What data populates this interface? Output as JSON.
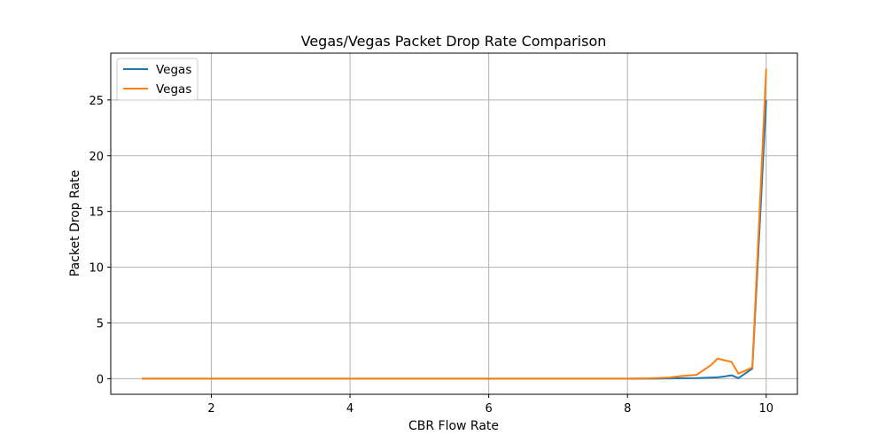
{
  "chart_data": {
    "type": "line",
    "title": "Vegas/Vegas Packet Drop Rate Comparison",
    "xlabel": "CBR Flow Rate",
    "ylabel": "Packet Drop Rate",
    "xlim": [
      0.55,
      10.45
    ],
    "ylim": [
      -1.4,
      29.2
    ],
    "xticks": [
      2,
      4,
      6,
      8,
      10
    ],
    "yticks": [
      0,
      5,
      10,
      15,
      20,
      25
    ],
    "grid": true,
    "legend_position": "top-left",
    "series": [
      {
        "name": "Vegas",
        "color": "#1f77b4",
        "x": [
          1.0,
          2.0,
          3.0,
          4.0,
          5.0,
          6.0,
          7.0,
          8.0,
          8.2,
          8.4,
          8.6,
          8.8,
          9.0,
          9.2,
          9.3,
          9.4,
          9.5,
          9.6,
          9.8,
          10.0
        ],
        "y": [
          0,
          0,
          0,
          0,
          0,
          0,
          0,
          0,
          0,
          0,
          0.02,
          0.04,
          0.05,
          0.1,
          0.12,
          0.2,
          0.3,
          0.05,
          0.9,
          25.0
        ]
      },
      {
        "name": "Vegas",
        "color": "#ff7f0e",
        "x": [
          1.0,
          2.0,
          3.0,
          4.0,
          5.0,
          6.0,
          7.0,
          8.0,
          8.2,
          8.4,
          8.6,
          8.8,
          9.0,
          9.2,
          9.3,
          9.4,
          9.5,
          9.6,
          9.8,
          10.0
        ],
        "y": [
          0,
          0,
          0,
          0,
          0,
          0,
          0,
          0,
          0.02,
          0.05,
          0.1,
          0.25,
          0.35,
          1.2,
          1.8,
          1.65,
          1.5,
          0.45,
          1.0,
          27.8
        ]
      }
    ]
  }
}
